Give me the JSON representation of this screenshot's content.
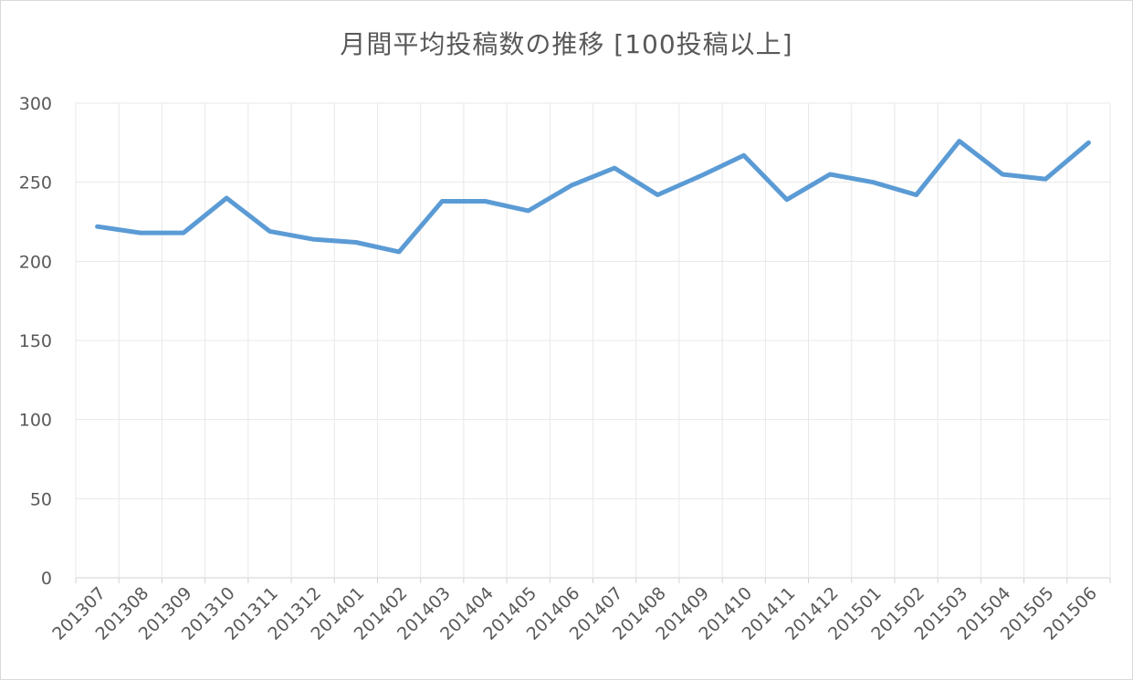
{
  "chart_data": {
    "type": "line",
    "title": "月間平均投稿数の推移 [100投稿以上]",
    "xlabel": "",
    "ylabel": "",
    "categories": [
      "201307",
      "201308",
      "201309",
      "201310",
      "201311",
      "201312",
      "201401",
      "201402",
      "201403",
      "201404",
      "201405",
      "201406",
      "201407",
      "201408",
      "201409",
      "201410",
      "201411",
      "201412",
      "201501",
      "201502",
      "201503",
      "201504",
      "201505",
      "201506"
    ],
    "series": [
      {
        "values": [
          222,
          218,
          218,
          240,
          219,
          214,
          212,
          206,
          238,
          238,
          232,
          248,
          259,
          242,
          254,
          267,
          239,
          255,
          250,
          242,
          276,
          255,
          252,
          275
        ]
      }
    ],
    "ylim": [
      0,
      300
    ],
    "yticks": [
      0,
      50,
      100,
      150,
      200,
      250,
      300
    ],
    "grid": true,
    "legend": "none",
    "colors": {
      "line": "#5b9bd5",
      "grid": "#e8e8e8",
      "text": "#595959"
    }
  }
}
